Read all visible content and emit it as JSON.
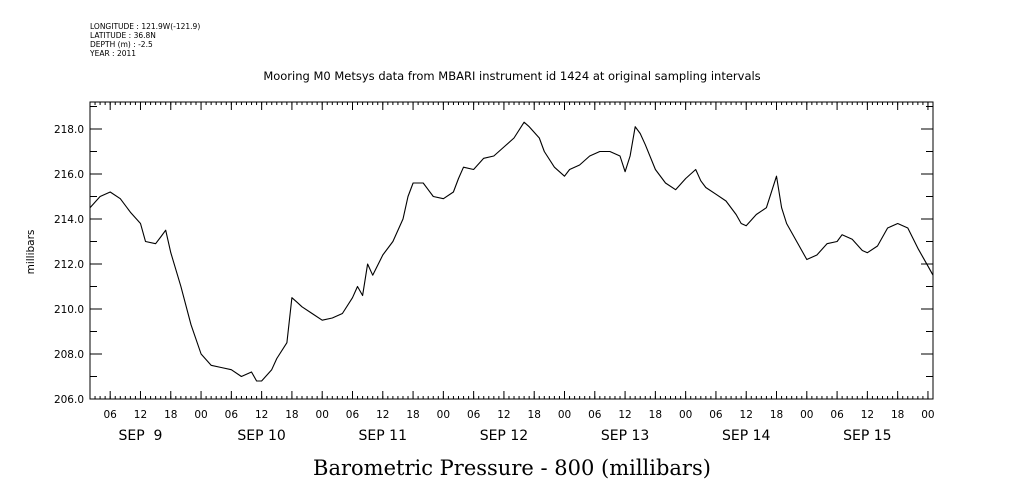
{
  "meta": {
    "longitude": "LONGITUDE : 121.9W(-121.9)",
    "latitude": "LATITUDE : 36.8N",
    "depth": "DEPTH (m) : -2.5",
    "year": "YEAR : 2011"
  },
  "chart_data": {
    "type": "line",
    "title": "Mooring M0 Metsys data from MBARI instrument id 1424 at original sampling intervals",
    "ylabel": "millibars",
    "xlabel": "Barometric Pressure - 800 (millibars)",
    "ylim": [
      206,
      219.2
    ],
    "xlim_hours": "Sep 9 02:00 to Sep 16 01:00",
    "yticks": [
      "206.0",
      "208.0",
      "210.0",
      "212.0",
      "214.0",
      "216.0",
      "218.0"
    ],
    "xtick_hour_labels": [
      "06",
      "12",
      "18",
      "00",
      "06",
      "12",
      "18",
      "00",
      "06",
      "12",
      "18",
      "00",
      "06",
      "12",
      "18",
      "00",
      "06",
      "12",
      "18",
      "00",
      "06",
      "12",
      "18",
      "00",
      "06",
      "12",
      "18",
      "00",
      "06",
      "12",
      "18",
      "00"
    ],
    "day_labels": [
      "SEP  9",
      "SEP 10",
      "SEP 11",
      "SEP 12",
      "SEP 13",
      "SEP 14",
      "SEP 15"
    ],
    "grid": false,
    "series": [
      {
        "x": [
          "2011-09-09 02:00",
          "2011-09-09 04:00",
          "2011-09-09 06:00",
          "2011-09-09 08:00",
          "2011-09-09 10:00",
          "2011-09-09 12:00",
          "2011-09-09 13:00",
          "2011-09-09 15:00",
          "2011-09-09 16:00",
          "2011-09-09 17:00",
          "2011-09-09 18:00",
          "2011-09-09 20:00",
          "2011-09-09 22:00",
          "2011-09-10 00:00",
          "2011-09-10 02:00",
          "2011-09-10 04:00",
          "2011-09-10 06:00",
          "2011-09-10 08:00",
          "2011-09-10 10:00",
          "2011-09-10 11:00",
          "2011-09-10 12:00",
          "2011-09-10 14:00",
          "2011-09-10 15:00",
          "2011-09-10 17:00",
          "2011-09-10 18:00",
          "2011-09-10 19:00",
          "2011-09-10 20:00",
          "2011-09-10 22:00",
          "2011-09-11 00:00",
          "2011-09-11 02:00",
          "2011-09-11 04:00",
          "2011-09-11 06:00",
          "2011-09-11 07:00",
          "2011-09-11 08:00",
          "2011-09-11 09:00",
          "2011-09-11 10:00",
          "2011-09-11 12:00",
          "2011-09-11 14:00",
          "2011-09-11 16:00",
          "2011-09-11 17:00",
          "2011-09-11 18:00",
          "2011-09-11 20:00",
          "2011-09-11 21:00",
          "2011-09-11 22:00",
          "2011-09-12 00:00",
          "2011-09-12 02:00",
          "2011-09-12 03:00",
          "2011-09-12 04:00",
          "2011-09-12 06:00",
          "2011-09-12 08:00",
          "2011-09-12 10:00",
          "2011-09-12 12:00",
          "2011-09-12 14:00",
          "2011-09-12 16:00",
          "2011-09-12 17:00",
          "2011-09-12 19:00",
          "2011-09-12 20:00",
          "2011-09-12 22:00",
          "2011-09-13 00:00",
          "2011-09-13 01:00",
          "2011-09-13 03:00",
          "2011-09-13 05:00",
          "2011-09-13 07:00",
          "2011-09-13 09:00",
          "2011-09-13 11:00",
          "2011-09-13 12:00",
          "2011-09-13 13:00",
          "2011-09-13 14:00",
          "2011-09-13 15:00",
          "2011-09-13 16:00",
          "2011-09-13 18:00",
          "2011-09-13 20:00",
          "2011-09-13 22:00",
          "2011-09-14 00:00",
          "2011-09-14 02:00",
          "2011-09-14 03:00",
          "2011-09-14 04:00",
          "2011-09-14 06:00",
          "2011-09-14 08:00",
          "2011-09-14 10:00",
          "2011-09-14 11:00",
          "2011-09-14 12:00",
          "2011-09-14 14:00",
          "2011-09-14 16:00",
          "2011-09-14 18:00",
          "2011-09-14 19:00",
          "2011-09-14 20:00",
          "2011-09-14 22:00",
          "2011-09-15 00:00",
          "2011-09-15 02:00",
          "2011-09-15 04:00",
          "2011-09-15 06:00",
          "2011-09-15 07:00",
          "2011-09-15 09:00",
          "2011-09-15 11:00",
          "2011-09-15 12:00",
          "2011-09-15 14:00",
          "2011-09-15 16:00",
          "2011-09-15 18:00",
          "2011-09-15 20:00",
          "2011-09-15 22:00",
          "2011-09-15 23:00",
          "2011-09-16 00:00",
          "2011-09-16 01:00"
        ],
        "y": [
          214.5,
          215.0,
          215.2,
          214.9,
          214.3,
          213.8,
          213.0,
          212.9,
          213.2,
          213.5,
          212.5,
          211.0,
          209.3,
          208.0,
          207.5,
          207.4,
          207.3,
          207.0,
          207.2,
          206.8,
          206.8,
          207.3,
          207.8,
          208.5,
          210.5,
          210.3,
          210.1,
          209.8,
          209.5,
          209.6,
          209.8,
          210.5,
          211.0,
          210.6,
          212.0,
          211.5,
          212.4,
          213.0,
          214.0,
          215.0,
          215.6,
          215.6,
          215.3,
          215.0,
          214.9,
          215.2,
          215.8,
          216.3,
          216.2,
          216.7,
          216.8,
          217.2,
          217.6,
          218.3,
          218.1,
          217.6,
          217.0,
          216.3,
          215.9,
          216.2,
          216.4,
          216.8,
          217.0,
          217.0,
          216.8,
          216.1,
          216.8,
          218.1,
          217.8,
          217.3,
          216.2,
          215.6,
          215.3,
          215.8,
          216.2,
          215.7,
          215.4,
          215.1,
          214.8,
          214.2,
          213.8,
          213.7,
          214.2,
          214.5,
          215.9,
          214.5,
          213.8,
          213.0,
          212.2,
          212.4,
          212.9,
          213.0,
          213.3,
          213.1,
          212.6,
          212.5,
          212.8,
          213.6,
          213.8,
          213.6,
          212.7,
          212.3,
          211.9,
          211.5
        ]
      }
    ]
  }
}
